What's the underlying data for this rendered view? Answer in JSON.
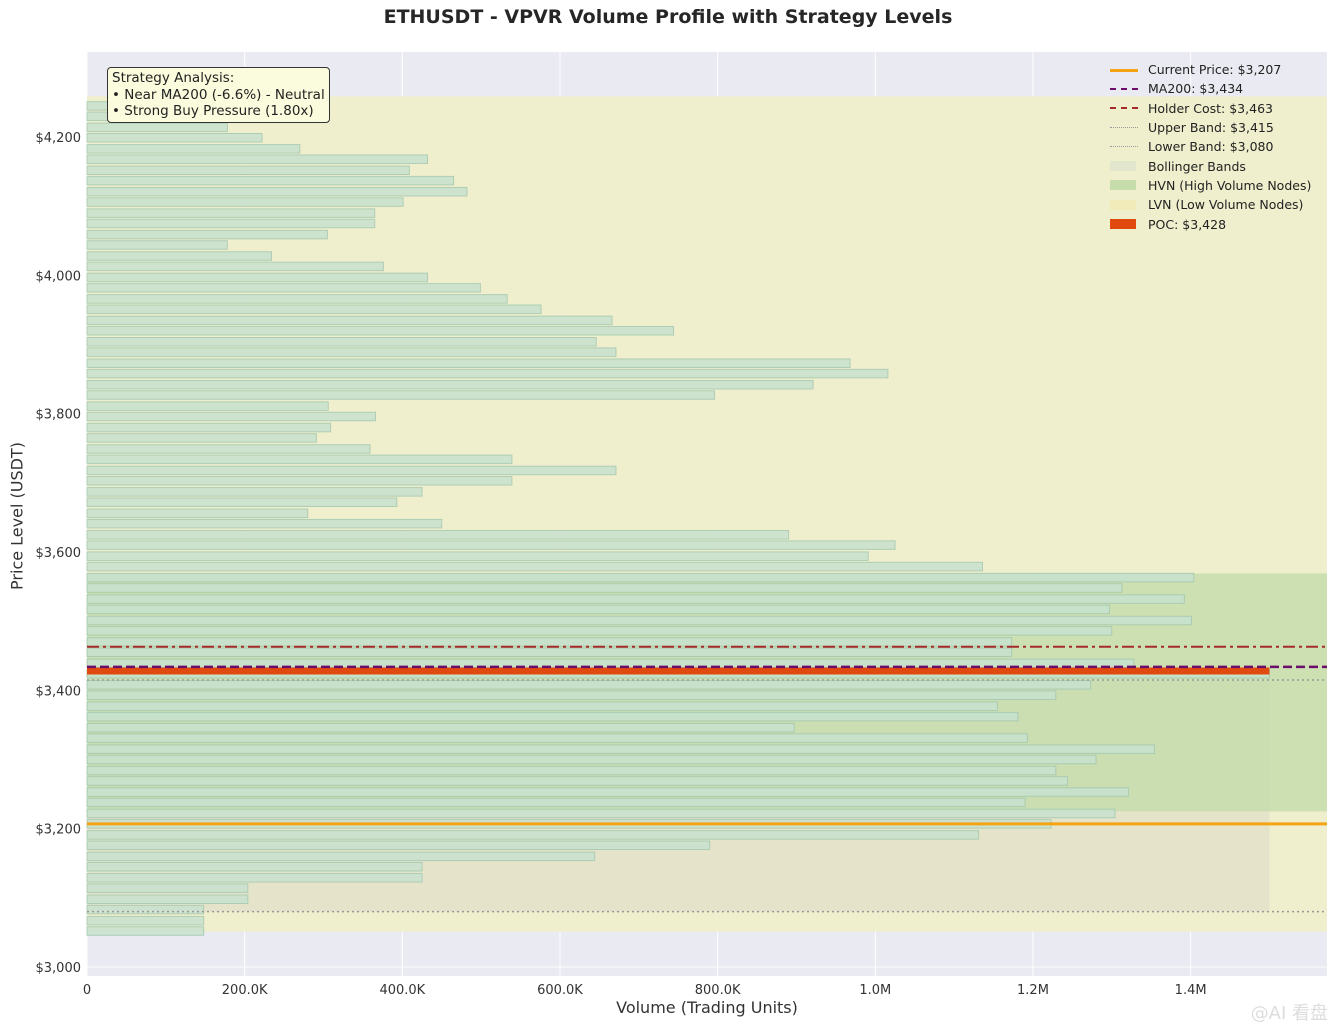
{
  "title": "ETHUSDT - VPVR Volume Profile with Strategy Levels",
  "xlabel": "Volume (Trading Units)",
  "ylabel": "Price Level (USDT)",
  "watermark": "@AI 看盘",
  "annotation": {
    "lines": [
      "Strategy Analysis:",
      "• Near MA200 (-6.6%) - Neutral",
      "• Strong Buy Pressure (1.80x)"
    ]
  },
  "legend": [
    {
      "label": "Current Price: $3,207",
      "kind": "line",
      "color": "#f5a312",
      "dash": "solid",
      "width": 3
    },
    {
      "label": "MA200: $3,434",
      "kind": "line",
      "color": "#6b0d6b",
      "dash": "dashed",
      "width": 2.5
    },
    {
      "label": "Holder Cost: $3,463",
      "kind": "line",
      "color": "#a52a2a",
      "dash": "dashdot",
      "width": 2
    },
    {
      "label": "Upper Band: $3,415",
      "kind": "line",
      "color": "#999999",
      "dash": "dotted",
      "width": 1.5
    },
    {
      "label": "Lower Band: $3,080",
      "kind": "line",
      "color": "#999999",
      "dash": "dotted",
      "width": 1.5
    },
    {
      "label": "Bollinger Bands",
      "kind": "patch",
      "color": "#e2e6cc"
    },
    {
      "label": "HVN (High Volume Nodes)",
      "kind": "patch",
      "color": "#c6dcaa"
    },
    {
      "label": "LVN (Low Volume Nodes)",
      "kind": "patch",
      "color": "#f1ebba"
    },
    {
      "label": "POC: $3,428",
      "kind": "patch",
      "color": "#e04a0e"
    }
  ],
  "colors": {
    "plot_bg": "#eaeaf2",
    "bar_fill": "#c8e2cf",
    "bar_edge": "#a4c8b0",
    "lvn_fill": "#efeeca",
    "hvn_fill": "#c4dcab",
    "bollinger_fill": "#e2e0c8",
    "poc": "#e04a0e"
  },
  "chart_data": {
    "type": "bar",
    "orientation": "horizontal",
    "x_ticks": [
      {
        "value": 0,
        "label": "0"
      },
      {
        "value": 200000,
        "label": "200.0K"
      },
      {
        "value": 400000,
        "label": "400.0K"
      },
      {
        "value": 600000,
        "label": "600.0K"
      },
      {
        "value": 800000,
        "label": "800.0K"
      },
      {
        "value": 1000000,
        "label": "1.0M"
      },
      {
        "value": 1200000,
        "label": "1.2M"
      },
      {
        "value": 1400000,
        "label": "1.4M"
      }
    ],
    "y_ticks": [
      {
        "value": 3000,
        "label": "$3,000"
      },
      {
        "value": 3200,
        "label": "$3,200"
      },
      {
        "value": 3400,
        "label": "$3,400"
      },
      {
        "value": 3600,
        "label": "$3,600"
      },
      {
        "value": 3800,
        "label": "$3,800"
      },
      {
        "value": 4000,
        "label": "$4,000"
      },
      {
        "value": 4200,
        "label": "$4,200"
      }
    ],
    "xlim": [
      0,
      1573000
    ],
    "ylim": [
      2987,
      4323
    ],
    "bin_height": 15,
    "bins": [
      {
        "price": 3052,
        "volume": 148000
      },
      {
        "price": 3067,
        "volume": 148000
      },
      {
        "price": 3083,
        "volume": 148000
      },
      {
        "price": 3098,
        "volume": 204000
      },
      {
        "price": 3114,
        "volume": 204000
      },
      {
        "price": 3129,
        "volume": 425000
      },
      {
        "price": 3145,
        "volume": 425000
      },
      {
        "price": 3160,
        "volume": 644000
      },
      {
        "price": 3176,
        "volume": 790000
      },
      {
        "price": 3191,
        "volume": 1131000
      },
      {
        "price": 3207,
        "volume": 1223000
      },
      {
        "price": 3222,
        "volume": 1304000
      },
      {
        "price": 3238,
        "volume": 1190000
      },
      {
        "price": 3253,
        "volume": 1321000
      },
      {
        "price": 3269,
        "volume": 1244000
      },
      {
        "price": 3284,
        "volume": 1229000
      },
      {
        "price": 3300,
        "volume": 1280000
      },
      {
        "price": 3315,
        "volume": 1354000
      },
      {
        "price": 3331,
        "volume": 1193000
      },
      {
        "price": 3346,
        "volume": 897000
      },
      {
        "price": 3362,
        "volume": 1181000
      },
      {
        "price": 3377,
        "volume": 1155000
      },
      {
        "price": 3393,
        "volume": 1229000
      },
      {
        "price": 3408,
        "volume": 1273000
      },
      {
        "price": 3424,
        "volume": 1500000
      },
      {
        "price": 3439,
        "volume": 1328000
      },
      {
        "price": 3455,
        "volume": 1173000
      },
      {
        "price": 3470,
        "volume": 1173000
      },
      {
        "price": 3486,
        "volume": 1300000
      },
      {
        "price": 3501,
        "volume": 1401000
      },
      {
        "price": 3517,
        "volume": 1297000
      },
      {
        "price": 3532,
        "volume": 1392000
      },
      {
        "price": 3548,
        "volume": 1313000
      },
      {
        "price": 3563,
        "volume": 1404000
      },
      {
        "price": 3579,
        "volume": 1136000
      },
      {
        "price": 3594,
        "volume": 991000
      },
      {
        "price": 3610,
        "volume": 1025000
      },
      {
        "price": 3625,
        "volume": 890000
      },
      {
        "price": 3641,
        "volume": 450000
      },
      {
        "price": 3656,
        "volume": 280000
      },
      {
        "price": 3672,
        "volume": 393000
      },
      {
        "price": 3687,
        "volume": 425000
      },
      {
        "price": 3703,
        "volume": 539000
      },
      {
        "price": 3718,
        "volume": 671000
      },
      {
        "price": 3734,
        "volume": 539000
      },
      {
        "price": 3749,
        "volume": 359000
      },
      {
        "price": 3765,
        "volume": 291000
      },
      {
        "price": 3780,
        "volume": 309000
      },
      {
        "price": 3796,
        "volume": 366000
      },
      {
        "price": 3811,
        "volume": 306000
      },
      {
        "price": 3827,
        "volume": 796000
      },
      {
        "price": 3842,
        "volume": 921000
      },
      {
        "price": 3858,
        "volume": 1016000
      },
      {
        "price": 3873,
        "volume": 968000
      },
      {
        "price": 3889,
        "volume": 671000
      },
      {
        "price": 3904,
        "volume": 646000
      },
      {
        "price": 3920,
        "volume": 744000
      },
      {
        "price": 3935,
        "volume": 666000
      },
      {
        "price": 3951,
        "volume": 576000
      },
      {
        "price": 3966,
        "volume": 533000
      },
      {
        "price": 3982,
        "volume": 499000
      },
      {
        "price": 3997,
        "volume": 432000
      },
      {
        "price": 4013,
        "volume": 376000
      },
      {
        "price": 4028,
        "volume": 234000
      },
      {
        "price": 4044,
        "volume": 178000
      },
      {
        "price": 4059,
        "volume": 305000
      },
      {
        "price": 4075,
        "volume": 365000
      },
      {
        "price": 4090,
        "volume": 365000
      },
      {
        "price": 4106,
        "volume": 401000
      },
      {
        "price": 4121,
        "volume": 482000
      },
      {
        "price": 4137,
        "volume": 465000
      },
      {
        "price": 4152,
        "volume": 409000
      },
      {
        "price": 4168,
        "volume": 432000
      },
      {
        "price": 4183,
        "volume": 270000
      },
      {
        "price": 4199,
        "volume": 222000
      },
      {
        "price": 4214,
        "volume": 178000
      },
      {
        "price": 4230,
        "volume": 120000
      },
      {
        "price": 4245,
        "volume": 70000
      }
    ],
    "hvn_range": [
      3225,
      3569
    ],
    "lvn_range": [
      3051,
      4259
    ],
    "bollinger": {
      "lower": 3080,
      "upper": 3415,
      "max_volume": 1500000
    },
    "levels": [
      {
        "name": "Current Price",
        "price": 3207
      },
      {
        "name": "MA200",
        "price": 3434
      },
      {
        "name": "Holder Cost",
        "price": 3463
      },
      {
        "name": "Upper Band",
        "price": 3415
      },
      {
        "name": "Lower Band",
        "price": 3080
      },
      {
        "name": "POC",
        "price": 3428
      }
    ],
    "grid": true,
    "legend_position": "top-right"
  }
}
